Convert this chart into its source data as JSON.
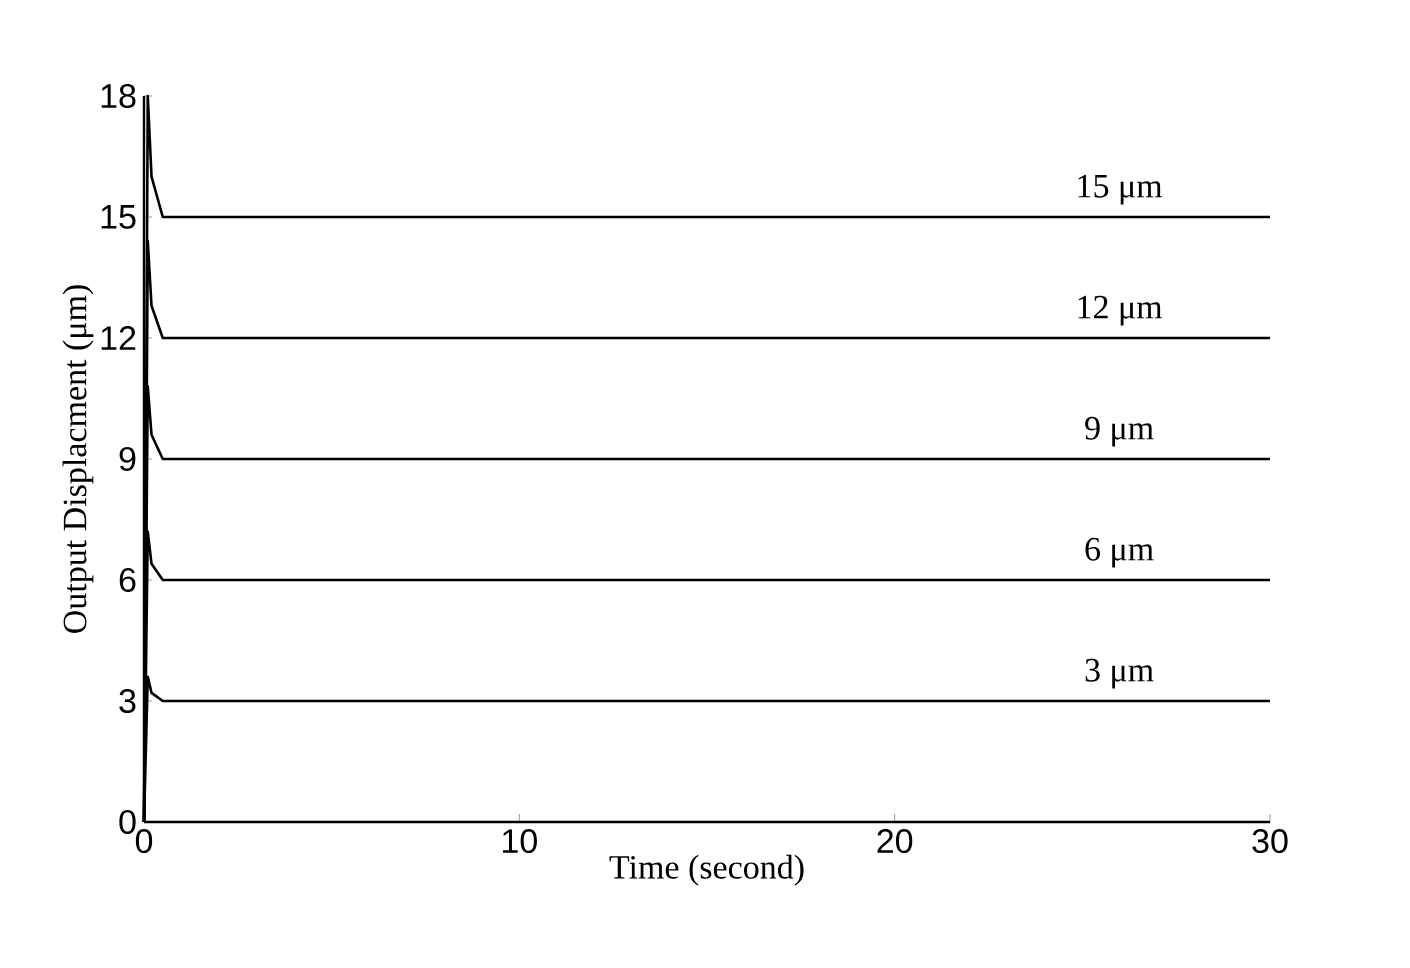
{
  "chart_data": {
    "type": "line",
    "xlabel": "Time (second)",
    "ylabel": "Output Displacment (μm)",
    "xlim": [
      0,
      30
    ],
    "ylim": [
      0,
      18
    ],
    "xticks": [
      0,
      10,
      20,
      30
    ],
    "yticks": [
      0,
      3,
      6,
      9,
      12,
      15,
      18
    ],
    "series": [
      {
        "name": "3 μm",
        "color": "#000000",
        "x": [
          0,
          0.1,
          0.2,
          0.5,
          30
        ],
        "values": [
          0,
          3.6,
          3.2,
          3,
          3
        ]
      },
      {
        "name": "6 μm",
        "color": "#000000",
        "x": [
          0,
          0.1,
          0.2,
          0.5,
          30
        ],
        "values": [
          0,
          7.2,
          6.4,
          6,
          6
        ]
      },
      {
        "name": "9 μm",
        "color": "#000000",
        "x": [
          0,
          0.1,
          0.2,
          0.5,
          30
        ],
        "values": [
          0,
          10.8,
          9.6,
          9,
          9
        ]
      },
      {
        "name": "12 μm",
        "color": "#000000",
        "x": [
          0,
          0.1,
          0.2,
          0.5,
          30
        ],
        "values": [
          0,
          14.4,
          12.8,
          12,
          12
        ]
      },
      {
        "name": "15 μm",
        "color": "#000000",
        "x": [
          0,
          0.1,
          0.2,
          0.5,
          30
        ],
        "values": [
          0,
          18,
          16,
          15,
          15
        ]
      }
    ]
  }
}
